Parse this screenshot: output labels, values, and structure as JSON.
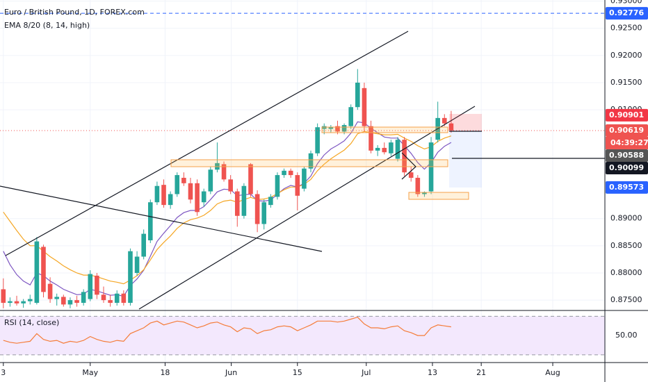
{
  "chart_data": [
    {
      "type": "candlestick",
      "title": "Euro / British Pound, 1D, FOREX.com",
      "subtitle": "EMA 8/20 (8, 14, high)",
      "up_color": "#26a69a",
      "down_color": "#ef5350",
      "xlim": [
        -0.5,
        90
      ],
      "xticks": [
        {
          "value": 0,
          "label": "3"
        },
        {
          "value": 13,
          "label": "May"
        },
        {
          "value": 24.2,
          "label": "18"
        },
        {
          "value": 34.1,
          "label": "Jun"
        },
        {
          "value": 44,
          "label": "15"
        },
        {
          "value": 54.3,
          "label": "Jul"
        },
        {
          "value": 64.2,
          "label": "13"
        },
        {
          "value": 71.5,
          "label": "21"
        },
        {
          "value": 82.2,
          "label": "Aug"
        }
      ],
      "ylim": [
        0.8731,
        0.9302
      ],
      "yticks": [
        {
          "value": 0.93,
          "label": "0.93000"
        },
        {
          "value": 0.925,
          "label": "0.92500"
        },
        {
          "value": 0.92,
          "label": "0.92000"
        },
        {
          "value": 0.915,
          "label": "0.91500"
        },
        {
          "value": 0.91,
          "label": "0.91000"
        },
        {
          "value": 0.89,
          "label": "0.89000"
        },
        {
          "value": 0.885,
          "label": "0.88500"
        },
        {
          "value": 0.88,
          "label": "0.88000"
        },
        {
          "value": 0.875,
          "label": "0.87500"
        }
      ],
      "open": [
        0.877,
        0.8745,
        0.8748,
        0.8744,
        0.8748,
        0.8745,
        0.8848,
        0.878,
        0.8752,
        0.8756,
        0.8742,
        0.875,
        0.8745,
        0.8752,
        0.8795,
        0.876,
        0.875,
        0.8745,
        0.8762,
        0.8745,
        0.88,
        0.883,
        0.886,
        0.893,
        0.8962,
        0.8925,
        0.8945,
        0.8975,
        0.8965,
        0.8965,
        0.893,
        0.895,
        0.899,
        0.9,
        0.8972,
        0.895,
        0.8905,
        0.9,
        0.8945,
        0.889,
        0.8925,
        0.894,
        0.898,
        0.8988,
        0.898,
        0.8955,
        0.8992,
        0.902,
        0.9065,
        0.9065,
        0.907,
        0.906,
        0.907,
        0.9105,
        0.914,
        0.907,
        0.9025,
        0.903,
        0.902,
        0.901,
        0.9045,
        0.8985,
        0.8975,
        0.8945,
        0.895,
        0.9045,
        0.9085,
        0.9075
      ],
      "high": [
        0.879,
        0.8755,
        0.8758,
        0.8752,
        0.876,
        0.8866,
        0.8852,
        0.8792,
        0.8762,
        0.876,
        0.8755,
        0.8758,
        0.877,
        0.8805,
        0.88,
        0.8775,
        0.876,
        0.8768,
        0.8768,
        0.8845,
        0.884,
        0.888,
        0.8935,
        0.8968,
        0.8972,
        0.895,
        0.8985,
        0.8985,
        0.8975,
        0.8972,
        0.8955,
        0.8995,
        0.904,
        0.9005,
        0.898,
        0.8955,
        0.8965,
        0.9002,
        0.8952,
        0.8935,
        0.8945,
        0.8985,
        0.8992,
        0.8992,
        0.8985,
        0.8995,
        0.9025,
        0.9075,
        0.9075,
        0.9072,
        0.908,
        0.9075,
        0.911,
        0.9175,
        0.915,
        0.908,
        0.9035,
        0.904,
        0.9045,
        0.905,
        0.905,
        0.8995,
        0.898,
        0.895,
        0.905,
        0.9115,
        0.9092,
        0.9098
      ],
      "low": [
        0.8735,
        0.8738,
        0.874,
        0.8736,
        0.8742,
        0.8742,
        0.8755,
        0.8745,
        0.874,
        0.8738,
        0.8735,
        0.8738,
        0.874,
        0.8748,
        0.8752,
        0.8745,
        0.8738,
        0.874,
        0.874,
        0.874,
        0.8795,
        0.8825,
        0.8855,
        0.8925,
        0.892,
        0.8918,
        0.894,
        0.896,
        0.8928,
        0.8905,
        0.8922,
        0.8945,
        0.8985,
        0.8968,
        0.8945,
        0.8885,
        0.89,
        0.894,
        0.8875,
        0.888,
        0.892,
        0.8935,
        0.8975,
        0.8975,
        0.8915,
        0.895,
        0.8985,
        0.9015,
        0.9055,
        0.9058,
        0.9055,
        0.9055,
        0.9065,
        0.91,
        0.906,
        0.902,
        0.9015,
        0.9018,
        0.9015,
        0.9005,
        0.8978,
        0.8968,
        0.894,
        0.894,
        0.8945,
        0.904,
        0.907,
        0.9058
      ],
      "close": [
        0.8745,
        0.8748,
        0.8744,
        0.8748,
        0.8752,
        0.8858,
        0.8765,
        0.8752,
        0.8756,
        0.8742,
        0.875,
        0.8745,
        0.8765,
        0.8798,
        0.876,
        0.875,
        0.8745,
        0.8762,
        0.8745,
        0.884,
        0.883,
        0.8872,
        0.893,
        0.896,
        0.8925,
        0.8945,
        0.898,
        0.8965,
        0.8935,
        0.8912,
        0.895,
        0.899,
        0.9002,
        0.8972,
        0.895,
        0.8905,
        0.896,
        0.8945,
        0.889,
        0.893,
        0.894,
        0.898,
        0.8988,
        0.898,
        0.8942,
        0.8992,
        0.902,
        0.9068,
        0.907,
        0.9068,
        0.906,
        0.9072,
        0.9105,
        0.915,
        0.907,
        0.9025,
        0.903,
        0.9022,
        0.904,
        0.9045,
        0.8985,
        0.8975,
        0.8945,
        0.8948,
        0.904,
        0.9085,
        0.9075,
        0.9062
      ],
      "series": [
        {
          "color": "#7e57c2",
          "values": [
            0.884,
            0.8815,
            0.8797,
            0.8785,
            0.8778,
            0.88,
            0.8795,
            0.8785,
            0.8778,
            0.877,
            0.8765,
            0.876,
            0.8761,
            0.877,
            0.8767,
            0.8763,
            0.8759,
            0.876,
            0.8757,
            0.8777,
            0.8789,
            0.8805,
            0.8831,
            0.8858,
            0.8873,
            0.8887,
            0.8902,
            0.8911,
            0.8915,
            0.8915,
            0.8922,
            0.8935,
            0.8949,
            0.8954,
            0.8953,
            0.8942,
            0.8944,
            0.8945,
            0.8933,
            0.8932,
            0.8934,
            0.8945,
            0.8955,
            0.8961,
            0.8958,
            0.8965,
            0.8978,
            0.9001,
            0.9017,
            0.9028,
            0.9035,
            0.9043,
            0.9057,
            0.9078,
            0.9076,
            0.9066,
            0.9058,
            0.905,
            0.9048,
            0.9048,
            0.9034,
            0.902,
            0.9003,
            0.8991,
            0.9003,
            0.9022,
            0.9033,
            0.904
          ]
        },
        {
          "color": "#f5a623",
          "values": [
            0.8912,
            0.8895,
            0.8878,
            0.8862,
            0.885,
            0.885,
            0.884,
            0.883,
            0.8822,
            0.8813,
            0.8806,
            0.88,
            0.8796,
            0.8796,
            0.8793,
            0.8789,
            0.8785,
            0.8783,
            0.878,
            0.8787,
            0.8795,
            0.8806,
            0.8824,
            0.8843,
            0.8856,
            0.8868,
            0.8882,
            0.8892,
            0.8898,
            0.8901,
            0.8906,
            0.8915,
            0.8927,
            0.8932,
            0.8934,
            0.893,
            0.8935,
            0.8939,
            0.8935,
            0.8936,
            0.8939,
            0.8946,
            0.8953,
            0.8958,
            0.8958,
            0.8963,
            0.8972,
            0.8988,
            0.9,
            0.901,
            0.9018,
            0.9026,
            0.9038,
            0.9056,
            0.906,
            0.9058,
            0.9056,
            0.9054,
            0.9054,
            0.9055,
            0.9048,
            0.9042,
            0.9034,
            0.9028,
            0.9032,
            0.9042,
            0.9048,
            0.9052
          ]
        }
      ],
      "price_labels": [
        {
          "value": 0.92776,
          "color": "#2962ff",
          "line": "dashed"
        },
        {
          "value": 0.90901,
          "color": "#f23645"
        },
        {
          "value": 0.90619,
          "color": "#ef5350",
          "line": "dotted",
          "countdown": "04:39:27"
        },
        {
          "value": 0.90588,
          "color": "#555555"
        },
        {
          "value": 0.90099,
          "color": "#131722"
        },
        {
          "value": 0.89573,
          "color": "#2962ff"
        }
      ]
    },
    {
      "type": "line",
      "title": "RSI (14, close)",
      "color": "#f57c38",
      "ylim": [
        22,
        76
      ],
      "yticks": [
        {
          "value": 50,
          "label": "50.00"
        }
      ],
      "bands": [
        70,
        30
      ],
      "band_fill": "#f3e8fd",
      "values": [
        45,
        43,
        42,
        43,
        44,
        52,
        46,
        44,
        45,
        42,
        44,
        43,
        45,
        49,
        46,
        44,
        43,
        45,
        44,
        52,
        55,
        58,
        63,
        65,
        61,
        63,
        65,
        64,
        61,
        58,
        60,
        63,
        64,
        61,
        59,
        54,
        58,
        57,
        52,
        55,
        56,
        59,
        60,
        59,
        55,
        58,
        61,
        65,
        65,
        65,
        64,
        65,
        67,
        69,
        62,
        58,
        58,
        57,
        59,
        60,
        55,
        53,
        50,
        50,
        58,
        61,
        60,
        59
      ]
    }
  ]
}
